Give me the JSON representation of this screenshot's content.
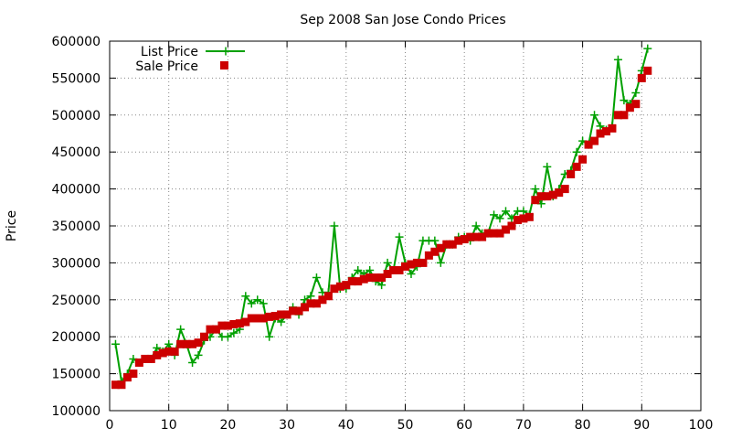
{
  "chart_data": {
    "type": "scatter",
    "title": "Sep 2008 San Jose Condo Prices",
    "xlabel": "",
    "ylabel": "Price",
    "xlim": [
      0,
      100
    ],
    "ylim": [
      100000,
      600000
    ],
    "xticks": [
      0,
      10,
      20,
      30,
      40,
      50,
      60,
      70,
      80,
      90,
      100
    ],
    "yticks": [
      100000,
      150000,
      200000,
      250000,
      300000,
      350000,
      400000,
      450000,
      500000,
      550000,
      600000
    ],
    "grid": true,
    "legend_position": "top-left",
    "series": [
      {
        "name": "List Price",
        "style": "line-plus",
        "color": "#00a000",
        "x": [
          1,
          2,
          3,
          4,
          5,
          6,
          7,
          8,
          9,
          10,
          11,
          12,
          13,
          14,
          15,
          16,
          17,
          18,
          19,
          20,
          21,
          22,
          23,
          24,
          25,
          26,
          27,
          28,
          29,
          30,
          31,
          32,
          33,
          34,
          35,
          36,
          37,
          38,
          39,
          40,
          41,
          42,
          43,
          44,
          45,
          46,
          47,
          48,
          49,
          50,
          51,
          52,
          53,
          54,
          55,
          56,
          57,
          58,
          59,
          60,
          61,
          62,
          63,
          64,
          65,
          66,
          67,
          68,
          69,
          70,
          71,
          72,
          73,
          74,
          75,
          76,
          77,
          78,
          79,
          80,
          81,
          82,
          83,
          84,
          85,
          86,
          87,
          88,
          89,
          90,
          91
        ],
        "y": [
          190000,
          140000,
          150000,
          170000,
          165000,
          170000,
          170000,
          185000,
          180000,
          190000,
          175000,
          210000,
          190000,
          165000,
          175000,
          195000,
          200000,
          210000,
          200000,
          200000,
          205000,
          210000,
          255000,
          245000,
          250000,
          245000,
          200000,
          225000,
          220000,
          230000,
          240000,
          230000,
          250000,
          255000,
          280000,
          260000,
          260000,
          350000,
          265000,
          265000,
          280000,
          290000,
          285000,
          290000,
          275000,
          270000,
          300000,
          290000,
          335000,
          300000,
          285000,
          295000,
          330000,
          330000,
          330000,
          300000,
          325000,
          325000,
          335000,
          335000,
          330000,
          350000,
          340000,
          340000,
          365000,
          360000,
          370000,
          360000,
          370000,
          370000,
          365000,
          400000,
          380000,
          430000,
          390000,
          400000,
          420000,
          425000,
          450000,
          465000,
          460000,
          500000,
          485000,
          480000,
          485000,
          575000,
          520000,
          515000,
          530000,
          560000,
          590000
        ]
      },
      {
        "name": "Sale Price",
        "style": "square",
        "color": "#cc0000",
        "x": [
          1,
          2,
          3,
          4,
          5,
          6,
          7,
          8,
          9,
          10,
          11,
          12,
          13,
          14,
          15,
          16,
          17,
          18,
          19,
          20,
          21,
          22,
          23,
          24,
          25,
          26,
          27,
          28,
          29,
          30,
          31,
          32,
          33,
          34,
          35,
          36,
          37,
          38,
          39,
          40,
          41,
          42,
          43,
          44,
          45,
          46,
          47,
          48,
          49,
          50,
          51,
          52,
          53,
          54,
          55,
          56,
          57,
          58,
          59,
          60,
          61,
          62,
          63,
          64,
          65,
          66,
          67,
          68,
          69,
          70,
          71,
          72,
          73,
          74,
          75,
          76,
          77,
          78,
          79,
          80,
          81,
          82,
          83,
          84,
          85,
          86,
          87,
          88,
          89,
          90,
          91
        ],
        "y": [
          135000,
          135000,
          145000,
          150000,
          165000,
          170000,
          170000,
          175000,
          178000,
          180000,
          180000,
          190000,
          190000,
          190000,
          192000,
          200000,
          210000,
          210000,
          215000,
          215000,
          217000,
          218000,
          220000,
          225000,
          225000,
          225000,
          227000,
          228000,
          230000,
          230000,
          235000,
          235000,
          240000,
          245000,
          245000,
          250000,
          255000,
          265000,
          268000,
          270000,
          275000,
          275000,
          278000,
          280000,
          280000,
          280000,
          285000,
          290000,
          290000,
          295000,
          298000,
          300000,
          300000,
          310000,
          315000,
          320000,
          325000,
          325000,
          330000,
          332000,
          335000,
          335000,
          335000,
          340000,
          340000,
          340000,
          345000,
          350000,
          358000,
          360000,
          362000,
          385000,
          390000,
          390000,
          392000,
          395000,
          400000,
          420000,
          430000,
          440000,
          460000,
          465000,
          475000,
          478000,
          482000,
          500000,
          500000,
          510000,
          515000,
          550000,
          560000
        ]
      }
    ]
  }
}
